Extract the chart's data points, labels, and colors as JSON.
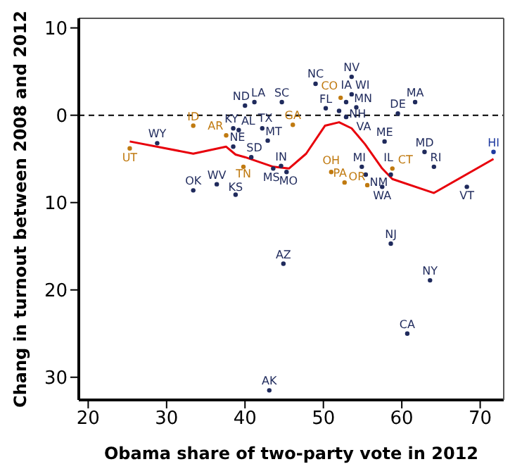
{
  "chart_data": {
    "type": "scatter",
    "xlabel": "Obama share of two-party vote in 2012",
    "ylabel": "Chang in turnout between 2008 and 2012",
    "xlim": [
      18.8,
      73
    ],
    "xticks": [
      20,
      30,
      40,
      50,
      60,
      70
    ],
    "ylim": [
      32.6,
      -11.1
    ],
    "yticks": [
      {
        "value": -10,
        "label": "10"
      },
      0,
      10,
      20,
      30
    ],
    "grid": false,
    "ref_lines": [
      {
        "axis": "y",
        "value": 0,
        "color": "#000000",
        "line_style": "dashed"
      }
    ],
    "series": [
      {
        "marker": "circle",
        "x": [
          25.3,
          28.8,
          33.4,
          40.0,
          41.2,
          44.7,
          49.0,
          53.6,
          53.6,
          52.2,
          52.9,
          54.2,
          50.3,
          52.0,
          52.9,
          61.7,
          59.5,
          37.6,
          38.5,
          39.2,
          42.2,
          46.1,
          42.9,
          38.5,
          40.8,
          39.8,
          43.6,
          44.6,
          45.3,
          33.4,
          36.4,
          38.8,
          51.0,
          52.7,
          54.9,
          55.4,
          55.6,
          57.5,
          57.8,
          58.8,
          58.6,
          62.9,
          64.1,
          68.3,
          71.7,
          58.6,
          44.9,
          63.6,
          60.7,
          43.1
        ],
        "values": [
          3.8,
          3.2,
          1.2,
          -1.1,
          -1.5,
          -1.5,
          -3.6,
          -4.4,
          -2.4,
          -2.0,
          -1.5,
          -0.9,
          -0.8,
          -0.5,
          0.2,
          -1.5,
          -0.2,
          2.3,
          1.5,
          1.7,
          1.5,
          1.1,
          2.9,
          3.6,
          4.8,
          5.9,
          6.1,
          5.8,
          6.5,
          8.6,
          7.9,
          9.1,
          6.5,
          7.7,
          5.9,
          6.8,
          8.0,
          8.2,
          3.0,
          6.1,
          6.8,
          4.2,
          5.9,
          8.2,
          4.2,
          14.7,
          17.0,
          18.9,
          25.0,
          31.5
        ],
        "value_labels": [
          "UT",
          "WY",
          "ID",
          "ND",
          "LA",
          "SC",
          "NC",
          "NV",
          "WI",
          "CO",
          "IA",
          "MN",
          "FL",
          "VA",
          "NH",
          "MA",
          "DE",
          "AR",
          "KY",
          "AL",
          "TX",
          "GA",
          "MT",
          "NE",
          "SD",
          "TN",
          "MS",
          "IN",
          "MO",
          "OK",
          "WV",
          "KS",
          "OH",
          "PA",
          "MI",
          "NM",
          "OR",
          "WA",
          "ME",
          "CT",
          "IL",
          "MD",
          "RI",
          "VT",
          "HI",
          "NJ",
          "AZ",
          "NY",
          "CA",
          "AK"
        ],
        "colors": [
          "#c07a10",
          "#1f2a5c",
          "#c07a10",
          "#1f2a5c",
          "#1f2a5c",
          "#1f2a5c",
          "#1f2a5c",
          "#1f2a5c",
          "#1f2a5c",
          "#c07a10",
          "#1f2a5c",
          "#1f2a5c",
          "#1f2a5c",
          "#1f2a5c",
          "#1f2a5c",
          "#1f2a5c",
          "#1f2a5c",
          "#c07a10",
          "#1f2a5c",
          "#1f2a5c",
          "#1f2a5c",
          "#c07a10",
          "#1f2a5c",
          "#1f2a5c",
          "#1f2a5c",
          "#c07a10",
          "#1f2a5c",
          "#1f2a5c",
          "#1f2a5c",
          "#1f2a5c",
          "#1f2a5c",
          "#1f2a5c",
          "#c07a10",
          "#c07a10",
          "#1f2a5c",
          "#1f2a5c",
          "#c07a10",
          "#1f2a5c",
          "#1f2a5c",
          "#c07a10",
          "#1f2a5c",
          "#1f2a5c",
          "#1f2a5c",
          "#1f2a5c",
          "#1f3aa0",
          "#1f2a5c",
          "#1f2a5c",
          "#1f2a5c",
          "#1f2a5c",
          "#1f2a5c"
        ]
      },
      {
        "type": "line",
        "color": "#e8000b",
        "marker": "none",
        "x": [
          25.3,
          33.4,
          37.6,
          38.8,
          40.0,
          43.6,
          45.6,
          47.8,
          50.2,
          52.0,
          53.6,
          55.3,
          57.5,
          58.8,
          64.1,
          71.7
        ],
        "values": [
          3.0,
          4.4,
          3.6,
          4.5,
          4.8,
          5.9,
          6.1,
          4.4,
          1.2,
          0.8,
          1.5,
          3.3,
          6.1,
          7.3,
          8.9,
          5.0
        ]
      }
    ]
  }
}
